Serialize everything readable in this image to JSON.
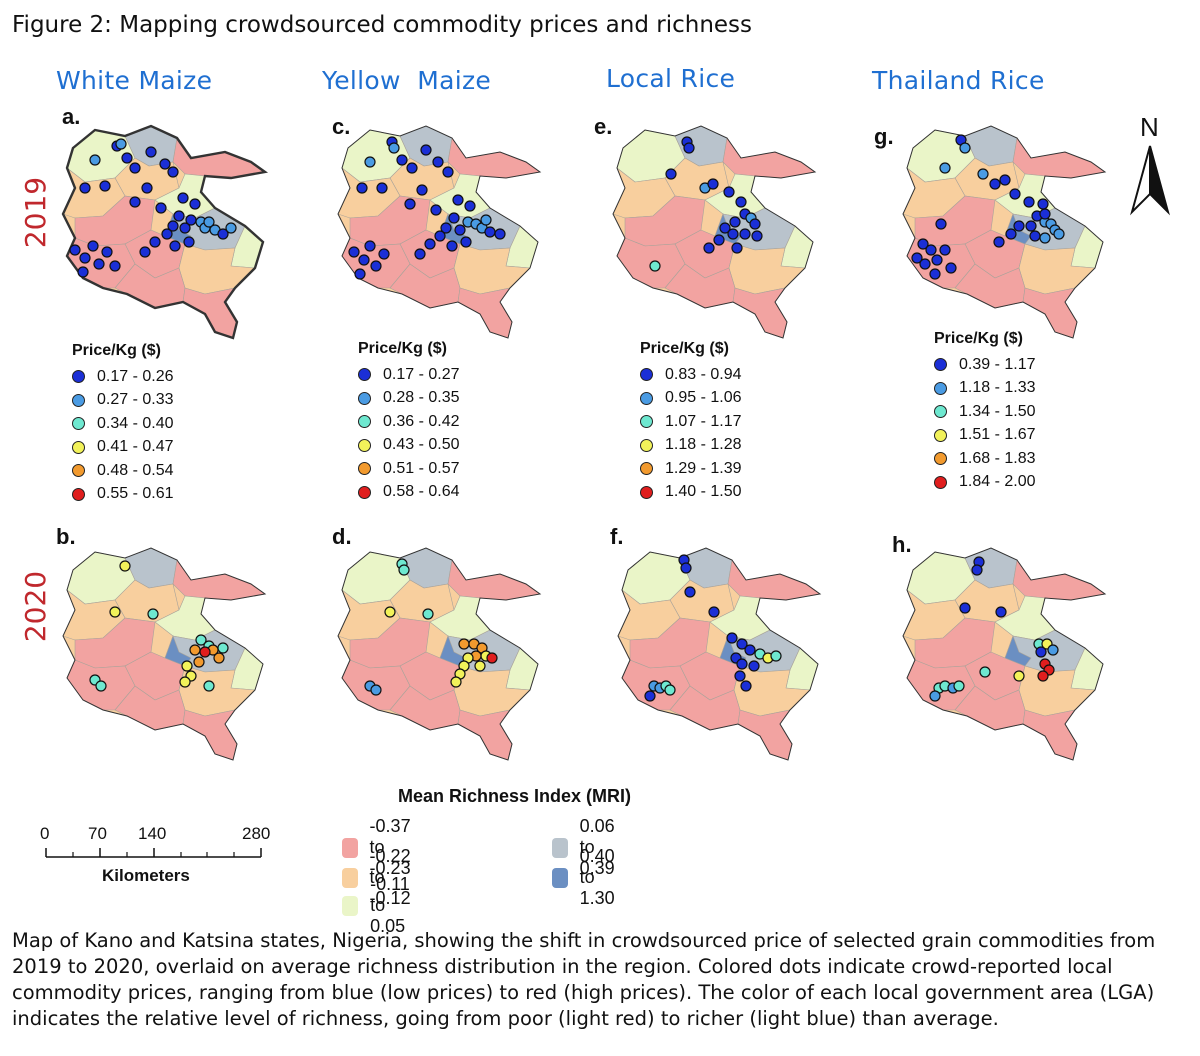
{
  "figure": {
    "title": "Figure 2: Mapping crowdsourced commodity prices and richness",
    "caption": "Map of Kano and Katsina states, Nigeria, showing the shift in crowdsourced price of selected grain commodities from 2019 to 2020, overlaid on average richness distribution in the region. Colored dots indicate crowd-reported local commodity prices, ranging from blue (low prices) to red (high prices). The color of each local government area (LGA) indicates the relative level of richness, going from poor (light red) to richer (light blue) than average."
  },
  "columns": [
    {
      "title": "White Maize"
    },
    {
      "title": "Yellow  Maize"
    },
    {
      "title": "Local Rice"
    },
    {
      "title": "Thailand Rice"
    }
  ],
  "years": {
    "top": "2019",
    "bottom": "2020"
  },
  "panels": [
    {
      "label": "a."
    },
    {
      "label": "c."
    },
    {
      "label": "e."
    },
    {
      "label": "g."
    },
    {
      "label": "b."
    },
    {
      "label": "d."
    },
    {
      "label": "f."
    },
    {
      "label": "h."
    }
  ],
  "price_legends": [
    {
      "title": "Price/Kg ($)",
      "ranges": [
        "0.17 - 0.26",
        "0.27 - 0.33",
        "0.34 - 0.40",
        "0.41 - 0.47",
        "0.48 - 0.54",
        "0.55 - 0.61"
      ]
    },
    {
      "title": "Price/Kg ($)",
      "ranges": [
        "0.17 - 0.27",
        "0.28 - 0.35",
        "0.36 - 0.42",
        "0.43 - 0.50",
        "0.51 - 0.57",
        "0.58 - 0.64"
      ]
    },
    {
      "title": "Price/Kg ($)",
      "ranges": [
        "0.83 - 0.94",
        "0.95 - 1.06",
        "1.07 - 1.17",
        "1.18 - 1.28",
        "1.29 - 1.39",
        "1.40 - 1.50"
      ]
    },
    {
      "title": "Price/Kg ($)",
      "ranges": [
        "0.39 - 1.17",
        "1.18 - 1.33",
        "1.34 - 1.50",
        "1.51 - 1.67",
        "1.68 - 1.83",
        "1.84 - 2.00"
      ]
    }
  ],
  "price_colors": [
    "#1b2fd6",
    "#4a9be3",
    "#6ee8d0",
    "#f2f25a",
    "#f29a2e",
    "#e01e1e"
  ],
  "mri_legend": {
    "title": "Mean Richness Index (MRI)",
    "classes": [
      {
        "label": "-0.37 to -0.23",
        "color": "#f2a3a1"
      },
      {
        "label": "-0.22 to -0.12",
        "color": "#f8cf9e"
      },
      {
        "label": "-0.11 to 0.05",
        "color": "#eaf5c8"
      },
      {
        "label": "0.06 to 0.39",
        "color": "#b9c3cc"
      },
      {
        "label": "0.40 to 1.30",
        "color": "#6b8fc2"
      }
    ]
  },
  "north_arrow": {
    "label": "N"
  },
  "scale_bar": {
    "ticks": [
      "0",
      "70",
      "140",
      "280"
    ],
    "unit": "Kilometers"
  }
}
